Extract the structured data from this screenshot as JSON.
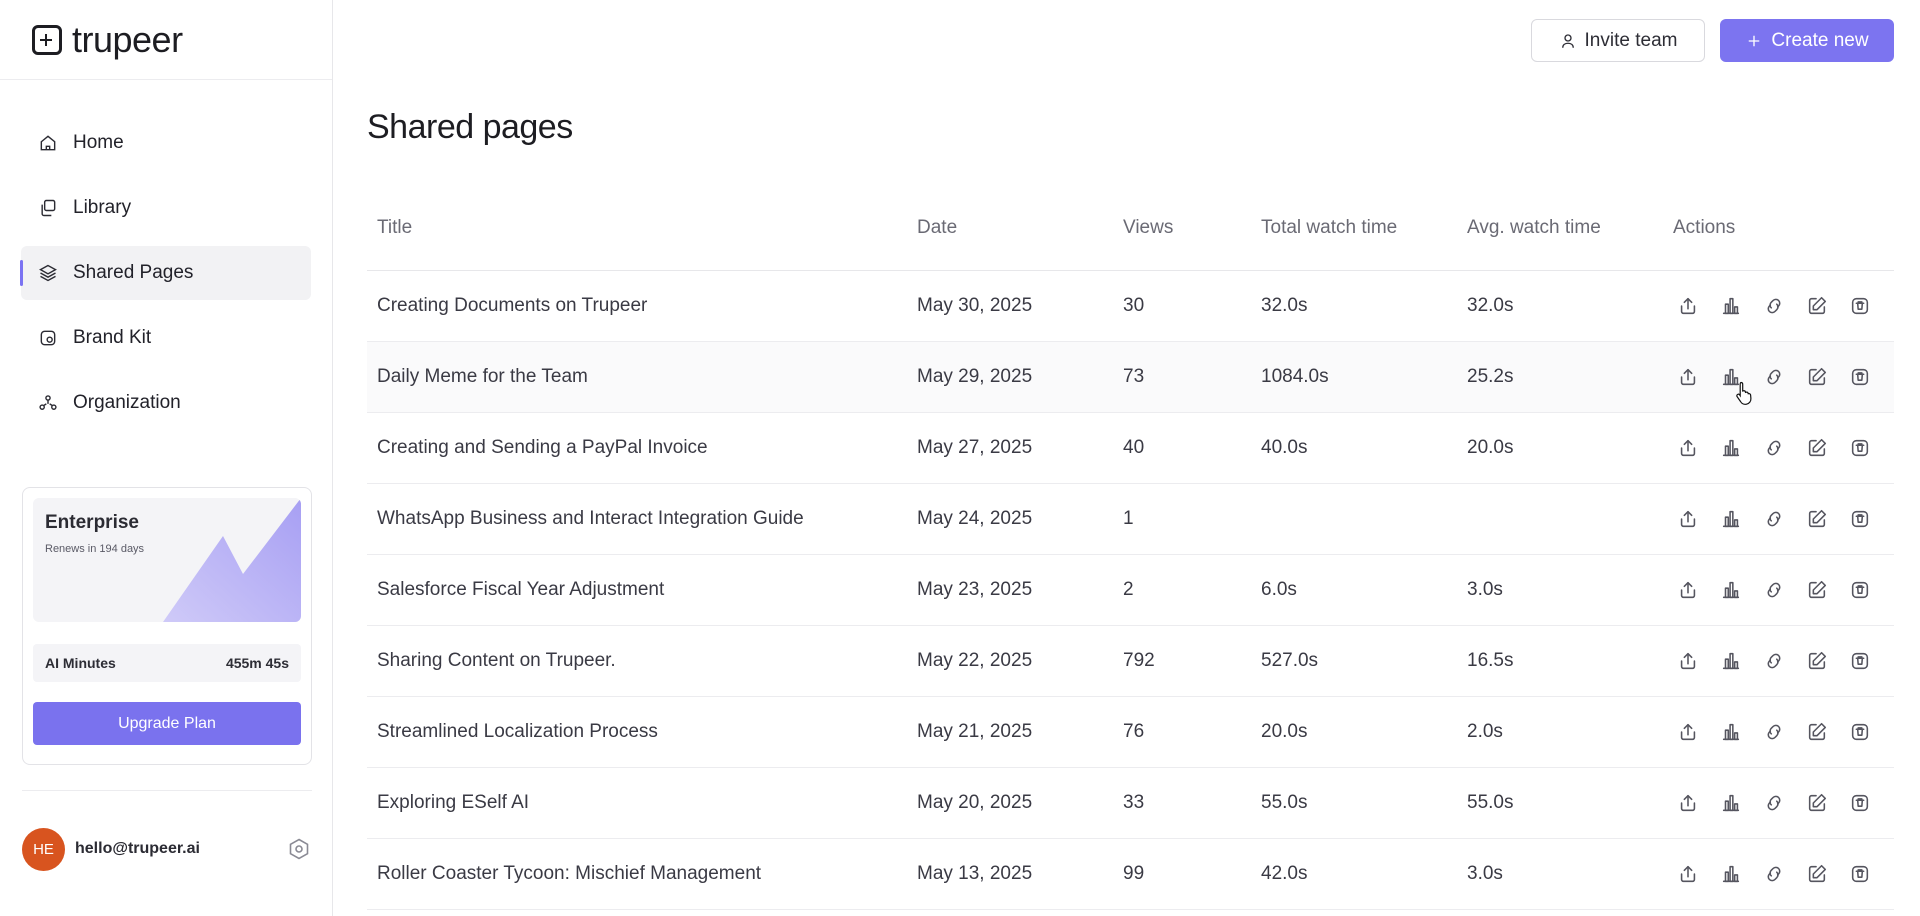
{
  "app": {
    "logo_text": "trupeer"
  },
  "sidebar": {
    "items": [
      {
        "label": "Home",
        "icon": "home-icon",
        "active": false
      },
      {
        "label": "Library",
        "icon": "library-icon",
        "active": false
      },
      {
        "label": "Shared Pages",
        "icon": "layers-icon",
        "active": true
      },
      {
        "label": "Brand Kit",
        "icon": "brand-kit-icon",
        "active": false
      },
      {
        "label": "Organization",
        "icon": "organization-icon",
        "active": false
      }
    ],
    "plan": {
      "name": "Enterprise",
      "renewal": "Renews in 194 days",
      "ai_minutes_label": "AI Minutes",
      "ai_minutes_value": "455m 45s",
      "upgrade_label": "Upgrade Plan"
    },
    "user": {
      "initials": "HE",
      "email": "hello@trupeer.ai"
    }
  },
  "header": {
    "invite_label": "Invite team",
    "create_label": "Create new"
  },
  "page": {
    "title": "Shared pages"
  },
  "table": {
    "columns": [
      "Title",
      "Date",
      "Views",
      "Total watch time",
      "Avg. watch time",
      "Actions"
    ],
    "rows": [
      {
        "title": "Creating Documents on Trupeer",
        "date": "May 30, 2025",
        "views": "30",
        "total": "32.0s",
        "avg": "32.0s"
      },
      {
        "title": "Daily Meme for the Team",
        "date": "May 29, 2025",
        "views": "73",
        "total": "1084.0s",
        "avg": "25.2s"
      },
      {
        "title": "Creating and Sending a PayPal Invoice",
        "date": "May 27, 2025",
        "views": "40",
        "total": "40.0s",
        "avg": "20.0s"
      },
      {
        "title": "WhatsApp Business and Interact Integration Guide",
        "date": "May 24, 2025",
        "views": "1",
        "total": "",
        "avg": ""
      },
      {
        "title": "Salesforce Fiscal Year Adjustment",
        "date": "May 23, 2025",
        "views": "2",
        "total": "6.0s",
        "avg": "3.0s"
      },
      {
        "title": "Sharing Content on Trupeer.",
        "date": "May 22, 2025",
        "views": "792",
        "total": "527.0s",
        "avg": "16.5s"
      },
      {
        "title": "Streamlined Localization Process",
        "date": "May 21, 2025",
        "views": "76",
        "total": "20.0s",
        "avg": "2.0s"
      },
      {
        "title": "Exploring ESelf AI",
        "date": "May 20, 2025",
        "views": "33",
        "total": "55.0s",
        "avg": "55.0s"
      },
      {
        "title": "Roller Coaster Tycoon: Mischief Management",
        "date": "May 13, 2025",
        "views": "99",
        "total": "42.0s",
        "avg": "3.0s"
      }
    ],
    "row_actions": [
      "share-icon",
      "analytics-icon",
      "link-icon",
      "edit-icon",
      "delete-icon"
    ]
  },
  "colors": {
    "accent": "#7c74f0",
    "avatar": "#d8541f"
  }
}
